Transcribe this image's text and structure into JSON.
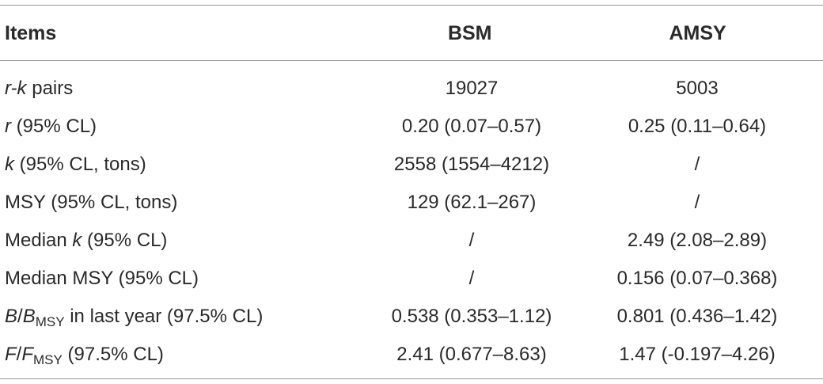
{
  "header": {
    "items": "Items",
    "bsm": "BSM",
    "amsy": "AMSY"
  },
  "rows": [
    {
      "label_italic": "r-k",
      "label_rest": " pairs",
      "bsm": "19027",
      "amsy": "5003"
    },
    {
      "label_italic": "r",
      "label_rest": " (95% CL)",
      "bsm": "0.20 (0.07–0.57)",
      "amsy": "0.25 (0.11–0.64)"
    },
    {
      "label_italic": "k",
      "label_rest": " (95% CL, tons)",
      "bsm": "2558 (1554–4212)",
      "amsy": "/"
    },
    {
      "label_text": "MSY (95% CL, tons)",
      "bsm": "129 (62.1–267)",
      "amsy": "/"
    },
    {
      "label_pre": "Median ",
      "label_italic": "k",
      "label_rest": " (95% CL)",
      "bsm": "/",
      "amsy": "2.49 (2.08–2.89)"
    },
    {
      "label_text": "Median MSY (95% CL)",
      "bsm": "/",
      "amsy": "0.156 (0.07–0.368)"
    },
    {
      "label_italic_a": "B",
      "label_slash": "/",
      "label_italic_b": "B",
      "label_sub": "MSY",
      "label_rest": " in last year (97.5% CL)",
      "bsm": "0.538 (0.353–1.12)",
      "amsy": "0.801 (0.436–1.42)"
    },
    {
      "label_italic_a": "F",
      "label_slash": "/",
      "label_italic_b": "F",
      "label_sub": "MSY",
      "label_rest": " (97.5% CL)",
      "bsm": "2.41 (0.677–8.63)",
      "amsy": "1.47 (-0.197–4.26)"
    }
  ]
}
